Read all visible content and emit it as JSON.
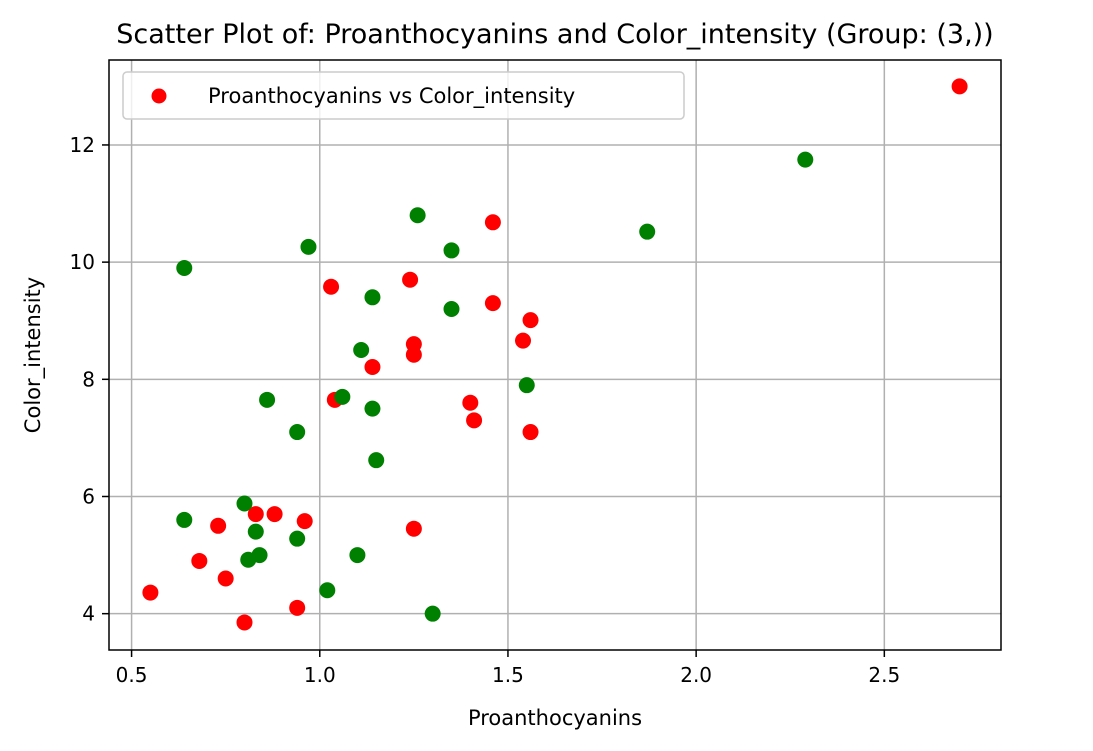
{
  "chart_data": {
    "type": "scatter",
    "title": "Scatter Plot of: Proanthocyanins and Color_intensity (Group: (3,))",
    "xlabel": "Proanthocyanins",
    "ylabel": "Color_intensity",
    "xlim": [
      0.44,
      2.81
    ],
    "ylim": [
      3.38,
      13.45
    ],
    "xticks": [
      0.5,
      1.0,
      1.5,
      2.0,
      2.5
    ],
    "xtick_labels": [
      "0.5",
      "1.0",
      "1.5",
      "2.0",
      "2.5"
    ],
    "yticks": [
      4,
      6,
      8,
      10,
      12
    ],
    "ytick_labels": [
      "4",
      "6",
      "8",
      "10",
      "12"
    ],
    "grid": true,
    "legend": {
      "position": "top-left",
      "entries": [
        {
          "label": "Proanthocyanins vs Color_intensity",
          "color": "#ff0000"
        }
      ]
    },
    "series": [
      {
        "color": "#ff0000",
        "points": [
          [
            2.7,
            13.0
          ],
          [
            1.46,
            10.68
          ],
          [
            1.24,
            9.7
          ],
          [
            1.03,
            9.58
          ],
          [
            1.46,
            9.3
          ],
          [
            1.56,
            9.01
          ],
          [
            1.54,
            8.66
          ],
          [
            1.25,
            8.6
          ],
          [
            1.25,
            8.42
          ],
          [
            1.14,
            8.21
          ],
          [
            1.04,
            7.65
          ],
          [
            1.4,
            7.6
          ],
          [
            1.41,
            7.3
          ],
          [
            1.56,
            7.1
          ],
          [
            0.83,
            5.7
          ],
          [
            0.88,
            5.7
          ],
          [
            0.96,
            5.58
          ],
          [
            0.73,
            5.5
          ],
          [
            1.25,
            5.45
          ],
          [
            0.68,
            4.9
          ],
          [
            0.75,
            4.6
          ],
          [
            0.55,
            4.36
          ],
          [
            0.94,
            4.1
          ],
          [
            0.8,
            3.85
          ]
        ]
      },
      {
        "color": "#008000",
        "points": [
          [
            2.29,
            11.75
          ],
          [
            1.26,
            10.8
          ],
          [
            1.87,
            10.52
          ],
          [
            0.97,
            10.26
          ],
          [
            1.35,
            10.2
          ],
          [
            0.64,
            9.9
          ],
          [
            1.14,
            9.4
          ],
          [
            1.35,
            9.2
          ],
          [
            1.11,
            8.5
          ],
          [
            1.55,
            7.9
          ],
          [
            1.06,
            7.7
          ],
          [
            0.86,
            7.65
          ],
          [
            1.14,
            7.5
          ],
          [
            0.94,
            7.1
          ],
          [
            1.15,
            6.62
          ],
          [
            0.8,
            5.88
          ],
          [
            0.64,
            5.6
          ],
          [
            0.83,
            5.4
          ],
          [
            0.94,
            5.28
          ],
          [
            0.84,
            5.0
          ],
          [
            1.1,
            5.0
          ],
          [
            0.81,
            4.92
          ],
          [
            1.02,
            4.4
          ],
          [
            1.3,
            4.0
          ]
        ]
      }
    ]
  }
}
